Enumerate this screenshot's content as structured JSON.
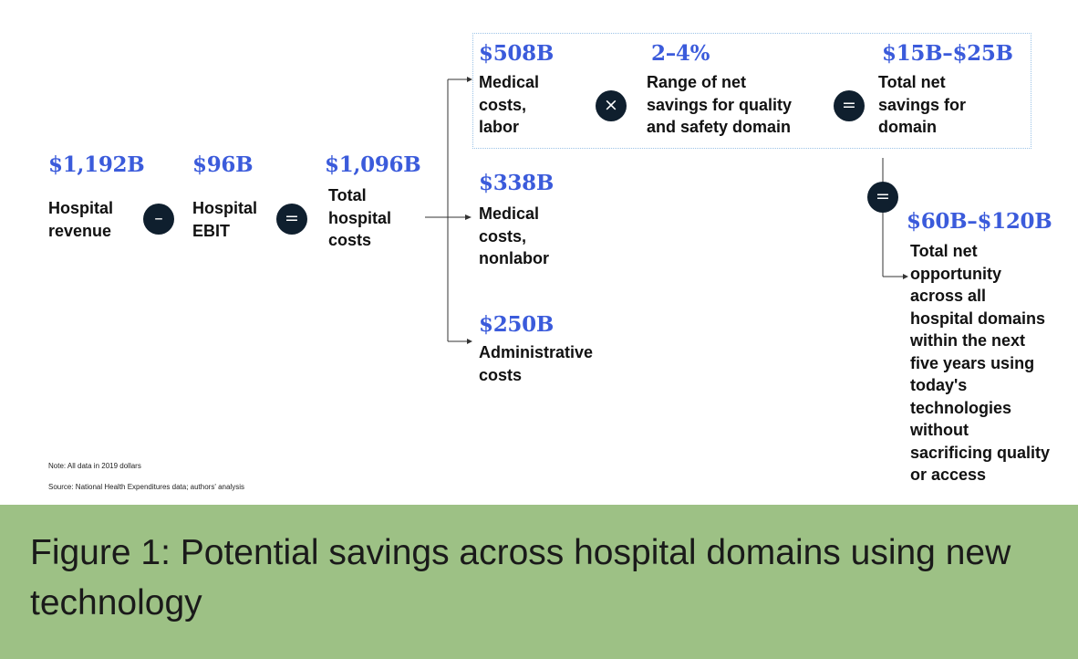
{
  "nodes": {
    "revenue": {
      "value": "$1,192B",
      "label": "Hospital\nrevenue"
    },
    "ebit": {
      "value": "$96B",
      "label": "Hospital\nEBIT"
    },
    "total_costs": {
      "value": "$1,096B",
      "label": "Total\nhospital\ncosts"
    },
    "labor": {
      "value": "$508B",
      "label": "Medical\ncosts,\nlabor"
    },
    "range": {
      "value": "2–4%",
      "label": "Range of net\nsavings for quality\nand safety domain"
    },
    "domain_savings": {
      "value": "$15B–$25B",
      "label": "Total net\nsavings for\ndomain"
    },
    "nonlabor": {
      "value": "$338B",
      "label": "Medical\ncosts,\nnonlabor"
    },
    "admin": {
      "value": "$250B",
      "label": "Administrative\ncosts"
    },
    "opportunity": {
      "value": "$60B–$120B",
      "label": "Total net\nopportunity\nacross all\nhospital domains\nwithin the next\nfive years using\ntoday's\ntechnologies\nwithout\nsacrificing quality\nor access"
    }
  },
  "operators": {
    "minus": "–",
    "equals": "=",
    "times": "×"
  },
  "notes": {
    "note": "Note: All data in 2019 dollars",
    "source": "Source: National Health Expenditures data; authors' analysis"
  },
  "caption": "Figure 1: Potential savings across hospital domains using new technology",
  "colors": {
    "value_text": "#3b5bdb",
    "operator_circle": "#0f1f2e",
    "caption_band": "#9dc185",
    "highlight_border": "#9cc3e6"
  }
}
